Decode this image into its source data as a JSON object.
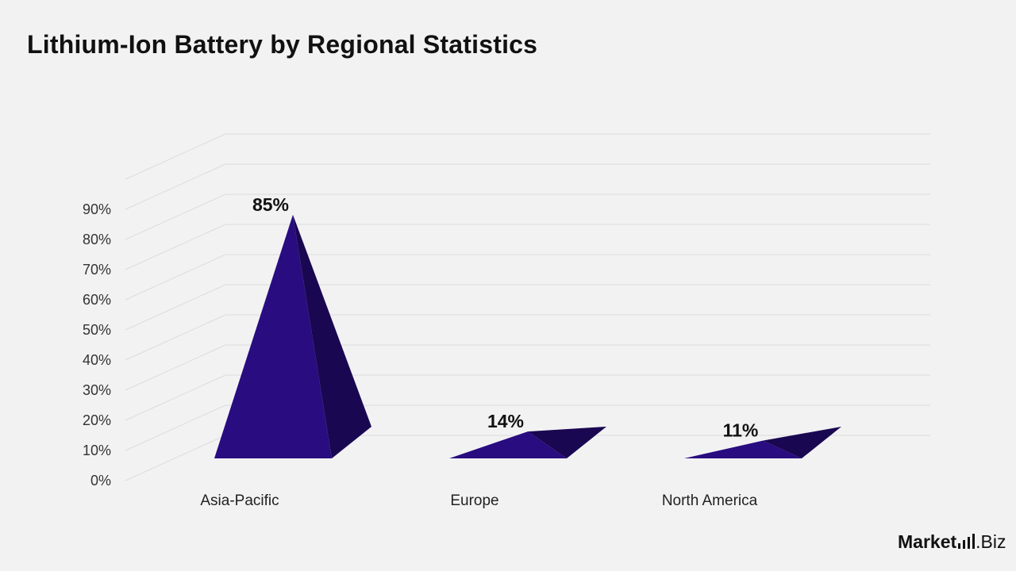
{
  "title": "Lithium-Ion Battery by Regional Statistics",
  "colors": {
    "front": "#290c80",
    "side": "#1a0751",
    "grid": "#dcdcdc",
    "background": "#f2f2f3"
  },
  "chart_data": {
    "type": "bar",
    "style": "3d-pyramid",
    "title": "Lithium-Ion Battery by Regional Statistics",
    "xlabel": "",
    "ylabel": "",
    "categories": [
      "Asia-Pacific",
      "Europe",
      "North America"
    ],
    "values": [
      85,
      14,
      11
    ],
    "data_labels": [
      "85%",
      "14%",
      "11%"
    ],
    "ylim": [
      0,
      90
    ],
    "yticks": [
      0,
      10,
      20,
      30,
      40,
      50,
      60,
      70,
      80,
      90
    ],
    "ytick_labels": [
      "0%",
      "10%",
      "20%",
      "30%",
      "40%",
      "50%",
      "60%",
      "70%",
      "80%",
      "90%"
    ],
    "grid": true,
    "legend": "none"
  },
  "logo": {
    "text_a": "Market",
    "text_b": ".Biz"
  }
}
